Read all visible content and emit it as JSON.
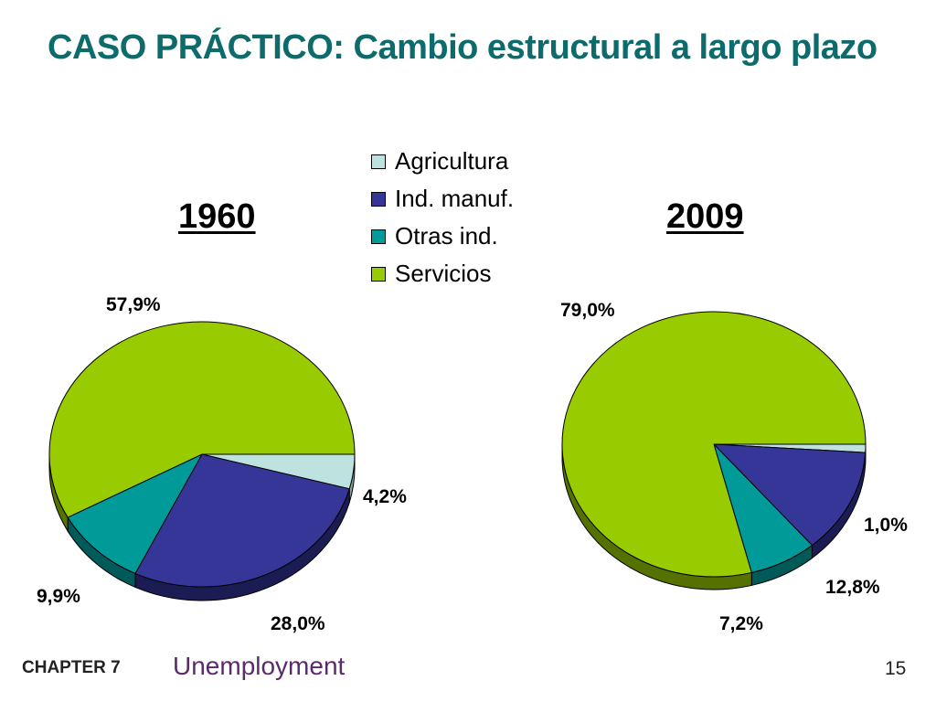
{
  "slide": {
    "title": "CASO PRÁCTICO: Cambio estructural a largo plazo",
    "footer_chapter": "CHAPTER 7",
    "footer_topic": "Unemployment",
    "page_number": "15"
  },
  "chart_data": [
    {
      "type": "pie",
      "title": "1960",
      "categories": [
        "Agricultura",
        "Ind. manuf.",
        "Otras ind.",
        "Servicios"
      ],
      "values": [
        4.2,
        28.0,
        9.9,
        57.9
      ],
      "labels": [
        "4,2%",
        "28,0%",
        "9,9%",
        "57,9%"
      ],
      "legend": "top-center"
    },
    {
      "type": "pie",
      "title": "2009",
      "categories": [
        "Agricultura",
        "Ind. manuf.",
        "Otras ind.",
        "Servicios"
      ],
      "values": [
        1.0,
        12.8,
        7.2,
        79.0
      ],
      "labels": [
        "1,0%",
        "12,8%",
        "7,2%",
        "79,0%"
      ],
      "legend": "top-center"
    }
  ],
  "legend": {
    "items": [
      {
        "label": "Agricultura",
        "color": "#bde2e0"
      },
      {
        "label": "Ind. manuf.",
        "color": "#363699"
      },
      {
        "label": "Otras ind.",
        "color": "#009a99"
      },
      {
        "label": "Servicios",
        "color": "#99cc00"
      }
    ]
  },
  "colors": {
    "title": "#0e6b6b",
    "slice_side": [
      "#7f9e9c",
      "#1c1c55",
      "#005a5a",
      "#557200"
    ]
  }
}
